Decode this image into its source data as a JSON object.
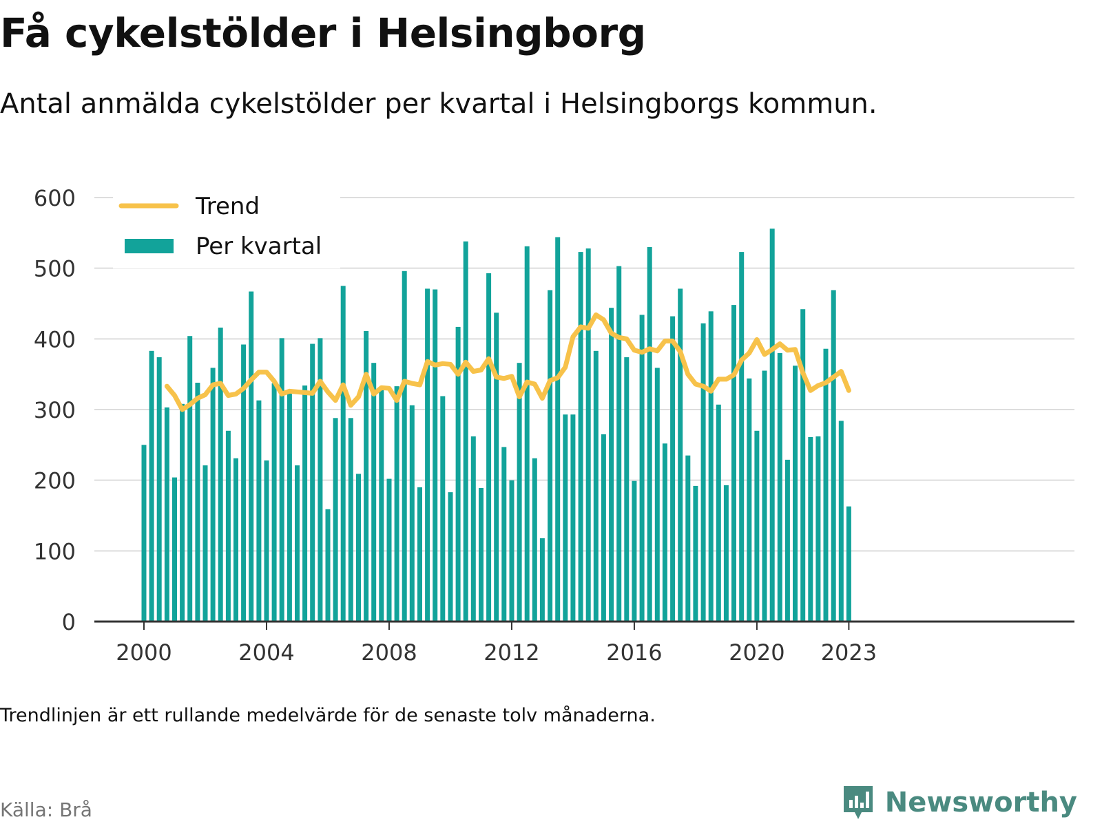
{
  "title": "Få cykelstölder i Helsingborg",
  "subtitle": "Antal anmälda cykelstölder per kvartal i Helsingborgs kommun.",
  "note": "Trendlinjen är ett rullande medelvärde för de senaste tolv månaderna.",
  "source": "Källa: Brå",
  "brand": {
    "name": "Newsworthy",
    "logo_icon": "newsworthy-chart-bubble-icon"
  },
  "colors": {
    "bars": "#12a39a",
    "trend": "#f7c24a",
    "grid": "#dddddd",
    "axis": "#333333",
    "brand": "#4a8a80"
  },
  "chart_data": {
    "type": "bar",
    "x_unit": "quarter",
    "start": "2000 Q1",
    "ylim": [
      0,
      600
    ],
    "yticks": [
      0,
      100,
      200,
      300,
      400,
      500,
      600
    ],
    "xticks": [
      "2000",
      "2004",
      "2008",
      "2012",
      "2016",
      "2020",
      "2023"
    ],
    "grid": true,
    "legend_placement": "top-left",
    "series": [
      {
        "name": "Per kvartal",
        "kind": "bar",
        "values": [
          250,
          383,
          374,
          303,
          204,
          308,
          404,
          338,
          221,
          359,
          416,
          270,
          231,
          392,
          467,
          313,
          228,
          337,
          401,
          328,
          221,
          334,
          393,
          401,
          159,
          288,
          475,
          288,
          209,
          411,
          366,
          328,
          202,
          333,
          496,
          306,
          190,
          471,
          470,
          319,
          183,
          417,
          538,
          262,
          189,
          493,
          437,
          247,
          200,
          366,
          531,
          231,
          118,
          469,
          544,
          293,
          293,
          523,
          528,
          383,
          265,
          444,
          503,
          374,
          199,
          434,
          530,
          359,
          252,
          432,
          471,
          235,
          192,
          422,
          439,
          307,
          193,
          448,
          523,
          344,
          270,
          355,
          556,
          380,
          229,
          362,
          442,
          261,
          262,
          386,
          469,
          284,
          163
        ]
      },
      {
        "name": "Trend",
        "kind": "line",
        "start_index": 3,
        "values": [
          333,
          320,
          300,
          307,
          316,
          321,
          335,
          337,
          320,
          322,
          330,
          342,
          353,
          353,
          340,
          322,
          326,
          325,
          324,
          323,
          340,
          325,
          313,
          335,
          306,
          318,
          350,
          322,
          331,
          330,
          313,
          340,
          337,
          335,
          368,
          363,
          365,
          364,
          350,
          367,
          354,
          356,
          372,
          346,
          344,
          347,
          318,
          339,
          336,
          316,
          341,
          345,
          360,
          403,
          417,
          415,
          434,
          427,
          408,
          402,
          400,
          384,
          381,
          386,
          383,
          397,
          397,
          382,
          350,
          336,
          333,
          326,
          343,
          343,
          349,
          370,
          380,
          399,
          378,
          385,
          393,
          384,
          385,
          352,
          327,
          334,
          338,
          346,
          354,
          327
        ]
      }
    ]
  }
}
